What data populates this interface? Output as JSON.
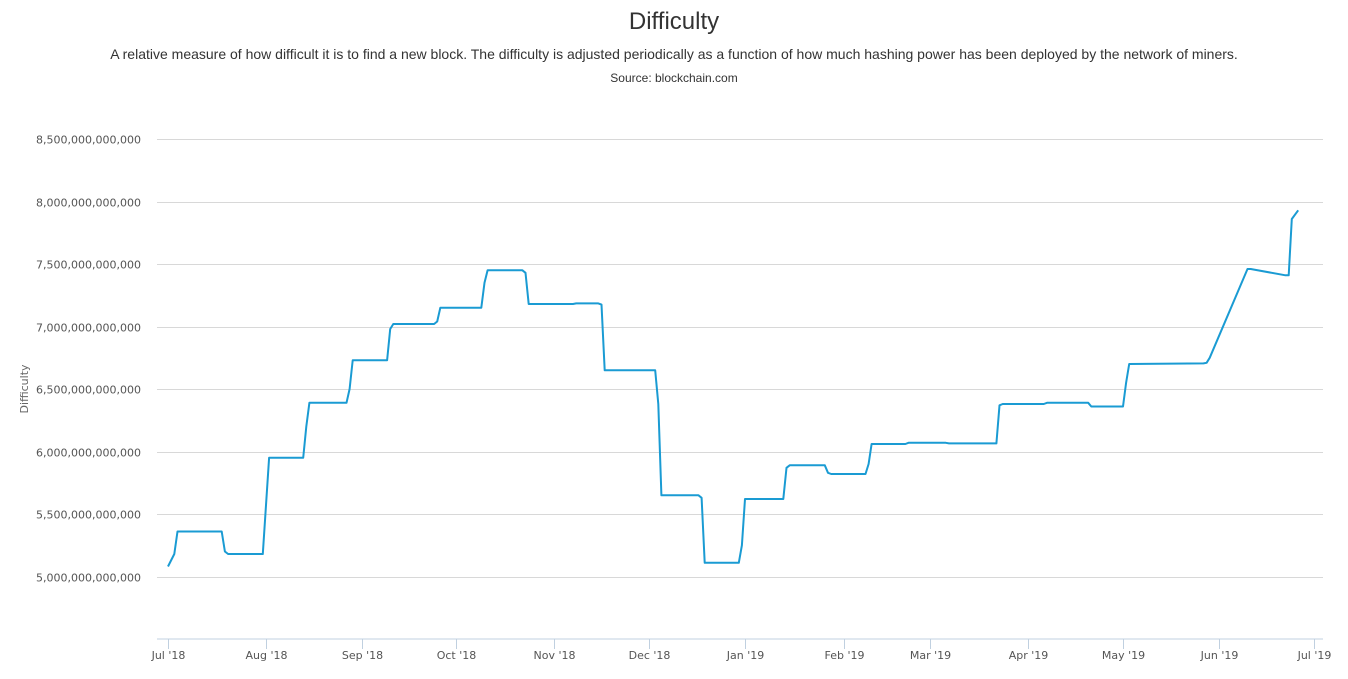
{
  "header": {
    "title": "Difficulty",
    "subtitle": "A relative measure of how difficult it is to find a new block. The difficulty is adjusted periodically as a function of how much hashing power has been deployed by the network of miners.",
    "source": "Source: blockchain.com"
  },
  "colors": {
    "line": "#1a9bd3",
    "grid": "#d8d8d8",
    "axis": "#c0d0e0",
    "text": "#333333"
  },
  "chart_data": {
    "type": "line",
    "title": "Difficulty",
    "subtitle": "A relative measure of how difficult it is to find a new block. The difficulty is adjusted periodically as a function of how much hashing power has been deployed by the network of miners.",
    "source": "Source: blockchain.com",
    "xlabel": "",
    "ylabel": "Difficulty",
    "ylim": [
      4500000000000,
      8500000000000
    ],
    "yticks": [
      5000000000000,
      5500000000000,
      6000000000000,
      6500000000000,
      7000000000000,
      7500000000000,
      8000000000000,
      8500000000000
    ],
    "ytick_labels": [
      "5,000,000,000,000",
      "5,500,000,000,000",
      "6,000,000,000,000",
      "6,500,000,000,000",
      "7,000,000,000,000",
      "7,500,000,000,000",
      "8,000,000,000,000",
      "8,500,000,000,000"
    ],
    "xticks": [
      "Jul '18",
      "Aug '18",
      "Sep '18",
      "Oct '18",
      "Nov '18",
      "Dec '18",
      "Jan '19",
      "Feb '19",
      "Mar '19",
      "Apr '19",
      "May '19",
      "Jun '19",
      "Jul '19"
    ],
    "grid": true,
    "legend": false,
    "series": [
      {
        "name": "Difficulty",
        "x": [
          "2018-07-01",
          "2018-07-03",
          "2018-07-04",
          "2018-07-18",
          "2018-07-19",
          "2018-07-20",
          "2018-07-31",
          "2018-08-02",
          "2018-08-13",
          "2018-08-14",
          "2018-08-15",
          "2018-08-27",
          "2018-08-28",
          "2018-08-29",
          "2018-09-09",
          "2018-09-10",
          "2018-09-11",
          "2018-09-24",
          "2018-09-25",
          "2018-09-26",
          "2018-10-09",
          "2018-10-10",
          "2018-10-11",
          "2018-10-22",
          "2018-10-23",
          "2018-10-24",
          "2018-11-07",
          "2018-11-08",
          "2018-11-15",
          "2018-11-16",
          "2018-11-17",
          "2018-12-03",
          "2018-12-04",
          "2018-12-05",
          "2018-12-17",
          "2018-12-18",
          "2018-12-19",
          "2018-12-30",
          "2018-12-31",
          "2019-01-01",
          "2019-01-13",
          "2019-01-14",
          "2019-01-15",
          "2019-01-26",
          "2019-01-27",
          "2019-01-28",
          "2019-02-08",
          "2019-02-09",
          "2019-02-10",
          "2019-02-21",
          "2019-02-22",
          "2019-03-06",
          "2019-03-07",
          "2019-03-22",
          "2019-03-23",
          "2019-03-24",
          "2019-04-06",
          "2019-04-07",
          "2019-04-20",
          "2019-04-21",
          "2019-05-01",
          "2019-05-02",
          "2019-05-03",
          "2019-05-27",
          "2019-05-28",
          "2019-05-29",
          "2019-06-10",
          "2019-06-11",
          "2019-06-22",
          "2019-06-23",
          "2019-06-24",
          "2019-06-26"
        ],
        "y": [
          5080000000000,
          5180000000000,
          5360000000000,
          5360000000000,
          5200000000000,
          5180000000000,
          5180000000000,
          5950000000000,
          5950000000000,
          6200000000000,
          6390000000000,
          6390000000000,
          6500000000000,
          6730000000000,
          6730000000000,
          6980000000000,
          7020000000000,
          7020000000000,
          7040000000000,
          7150000000000,
          7150000000000,
          7350000000000,
          7450000000000,
          7450000000000,
          7430000000000,
          7180000000000,
          7180000000000,
          7185000000000,
          7185000000000,
          7175000000000,
          6650000000000,
          6650000000000,
          6380000000000,
          5650000000000,
          5650000000000,
          5630000000000,
          5110000000000,
          5110000000000,
          5250000000000,
          5620000000000,
          5620000000000,
          5870000000000,
          5890000000000,
          5890000000000,
          5830000000000,
          5820000000000,
          5820000000000,
          5900000000000,
          6060000000000,
          6060000000000,
          6070000000000,
          6070000000000,
          6065000000000,
          6065000000000,
          6370000000000,
          6380000000000,
          6380000000000,
          6390000000000,
          6390000000000,
          6360000000000,
          6360000000000,
          6550000000000,
          6700000000000,
          6705000000000,
          6710000000000,
          6750000000000,
          7460000000000,
          7460000000000,
          7410000000000,
          7410000000000,
          7860000000000,
          7930000000000
        ]
      }
    ]
  }
}
